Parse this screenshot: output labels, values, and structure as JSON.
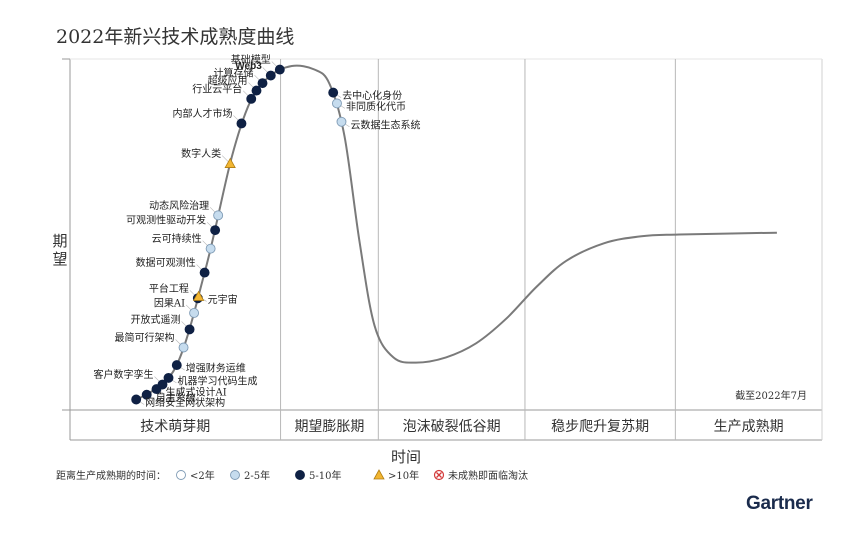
{
  "page": {
    "title": "2022年新兴技术成熟度曲线",
    "brand": "Gartner"
  },
  "chart_data": {
    "type": "line",
    "title": "2022年新兴技术成熟度曲线",
    "xlabel": "时间",
    "ylabel": "期望",
    "ylabel_lines": [
      "期",
      "望"
    ],
    "note": "截至2022年7月",
    "phases": [
      "技术萌芽期",
      "期望膨胀期",
      "泡沫破裂低谷期",
      "稳步爬升复苏期",
      "生产成熟期"
    ],
    "phase_bounds": [
      0,
      0.28,
      0.41,
      0.605,
      0.805,
      1.0
    ],
    "ylim": [
      0,
      100
    ],
    "curve": [
      [
        0.09,
        3
      ],
      [
        0.14,
        12
      ],
      [
        0.18,
        40
      ],
      [
        0.215,
        72
      ],
      [
        0.24,
        88
      ],
      [
        0.265,
        95
      ],
      [
        0.295,
        98
      ],
      [
        0.325,
        97
      ],
      [
        0.345,
        93
      ],
      [
        0.365,
        78
      ],
      [
        0.385,
        48
      ],
      [
        0.405,
        24
      ],
      [
        0.43,
        15
      ],
      [
        0.46,
        13.5
      ],
      [
        0.5,
        15
      ],
      [
        0.54,
        19
      ],
      [
        0.58,
        26
      ],
      [
        0.62,
        35
      ],
      [
        0.66,
        42.5
      ],
      [
        0.71,
        47.5
      ],
      [
        0.76,
        49.5
      ],
      [
        0.81,
        50
      ],
      [
        0.94,
        50.5
      ]
    ],
    "legend": {
      "label": "距离生产成熟期的时间：",
      "items": [
        {
          "key": "lt2",
          "label": "<2年",
          "color": "#ffffff",
          "shape": "circle"
        },
        {
          "key": "2to5",
          "label": "2-5年",
          "color": "#c6dcee",
          "shape": "circle"
        },
        {
          "key": "5to10",
          "label": "5-10年",
          "color": "#0f2144",
          "shape": "circle"
        },
        {
          "key": "gt10",
          "label": ">10年",
          "color": "#f2b632",
          "shape": "triangle"
        },
        {
          "key": "obsolete",
          "label": "未成熟即面临淘汰",
          "color": "#d33a3a",
          "shape": "cross"
        }
      ]
    },
    "points": [
      {
        "name": "网络安全网状架构",
        "cat": "5to10",
        "x": 0.088,
        "side": "right",
        "bold": false
      },
      {
        "name": "自主系统",
        "cat": "5to10",
        "x": 0.102,
        "side": "right",
        "bold": false
      },
      {
        "name": "生成式设计AI",
        "cat": "5to10",
        "x": 0.115,
        "side": "right",
        "bold": false
      },
      {
        "name": "客户数字孪生",
        "cat": "5to10",
        "x": 0.123,
        "side": "left",
        "bold": false
      },
      {
        "name": "机器学习代码生成",
        "cat": "5to10",
        "x": 0.131,
        "side": "right",
        "bold": false
      },
      {
        "name": "增强财务运维",
        "cat": "5to10",
        "x": 0.142,
        "side": "right",
        "bold": false
      },
      {
        "name": "最简可行架构",
        "cat": "2to5",
        "x": 0.151,
        "side": "left",
        "bold": false
      },
      {
        "name": "开放式遥测",
        "cat": "5to10",
        "x": 0.159,
        "side": "left",
        "bold": false
      },
      {
        "name": "因果AI",
        "cat": "2to5",
        "x": 0.165,
        "side": "left",
        "bold": false
      },
      {
        "name": "平台工程",
        "cat": "5to10",
        "x": 0.17,
        "side": "left",
        "bold": false
      },
      {
        "name": "元宇宙",
        "cat": "gt10",
        "x": 0.171,
        "side": "right",
        "bold": false
      },
      {
        "name": "数据可观测性",
        "cat": "5to10",
        "x": 0.179,
        "side": "left",
        "bold": false
      },
      {
        "name": "云可持续性",
        "cat": "2to5",
        "x": 0.187,
        "side": "left",
        "bold": false
      },
      {
        "name": "可观测性驱动开发",
        "cat": "5to10",
        "x": 0.193,
        "side": "left",
        "bold": false
      },
      {
        "name": "动态风险治理",
        "cat": "2to5",
        "x": 0.197,
        "side": "left",
        "bold": false
      },
      {
        "name": "数字人类",
        "cat": "gt10",
        "x": 0.213,
        "side": "left",
        "bold": false
      },
      {
        "name": "内部人才市场",
        "cat": "5to10",
        "x": 0.228,
        "side": "left",
        "bold": false
      },
      {
        "name": "行业云平台",
        "cat": "5to10",
        "x": 0.241,
        "side": "left",
        "bold": false
      },
      {
        "name": "超级应用",
        "cat": "5to10",
        "x": 0.248,
        "side": "left",
        "bold": false
      },
      {
        "name": "计算存储",
        "cat": "5to10",
        "x": 0.256,
        "side": "left",
        "bold": false
      },
      {
        "name": "Web3",
        "cat": "5to10",
        "x": 0.267,
        "side": "left",
        "bold": true
      },
      {
        "name": "基础模型",
        "cat": "5to10",
        "x": 0.279,
        "side": "left",
        "bold": false
      },
      {
        "name": "去中心化身份",
        "cat": "5to10",
        "x": 0.35,
        "side": "right",
        "bold": false
      },
      {
        "name": "非同质化代币",
        "cat": "2to5",
        "x": 0.355,
        "side": "right",
        "bold": false
      },
      {
        "name": "云数据生态系统",
        "cat": "2to5",
        "x": 0.361,
        "side": "right",
        "bold": false
      }
    ]
  }
}
